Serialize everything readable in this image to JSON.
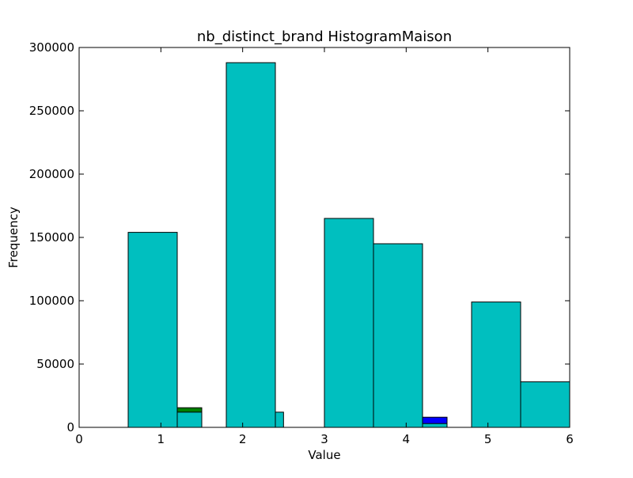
{
  "chart_data": {
    "type": "bar",
    "title": "nb_distinct_brand HistogramMaison",
    "xlabel": "Value",
    "ylabel": "Frequency",
    "xlim": [
      0,
      6
    ],
    "ylim": [
      0,
      300000
    ],
    "xticks": [
      "0",
      "1",
      "2",
      "3",
      "4",
      "5",
      "6"
    ],
    "yticks": [
      "0",
      "50000",
      "100000",
      "150000",
      "200000",
      "250000",
      "300000"
    ],
    "grid": false,
    "series": [
      {
        "color": "#0000ff",
        "bins": [
          {
            "x0": 4.2,
            "x1": 4.5,
            "value": 8000
          }
        ]
      },
      {
        "color": "#008000",
        "bins": [
          {
            "x0": 1.2,
            "x1": 1.5,
            "value": 15500
          }
        ]
      },
      {
        "color": "#00bfbf",
        "bins": [
          {
            "x0": 0.0,
            "x1": 0.6,
            "value": 0
          },
          {
            "x0": 0.6,
            "x1": 1.2,
            "value": 154000
          },
          {
            "x0": 1.2,
            "x1": 1.5,
            "value": 12000
          },
          {
            "x0": 1.8,
            "x1": 2.4,
            "value": 288000
          },
          {
            "x0": 2.4,
            "x1": 2.5,
            "value": 12000
          },
          {
            "x0": 2.5,
            "x1": 3.0,
            "value": 0
          },
          {
            "x0": 3.0,
            "x1": 3.6,
            "value": 165000
          },
          {
            "x0": 3.6,
            "x1": 4.2,
            "value": 145000
          },
          {
            "x0": 4.2,
            "x1": 4.5,
            "value": 3000
          },
          {
            "x0": 4.5,
            "x1": 4.8,
            "value": 0
          },
          {
            "x0": 4.8,
            "x1": 5.4,
            "value": 99000
          },
          {
            "x0": 5.4,
            "x1": 6.0,
            "value": 36000
          }
        ]
      }
    ]
  }
}
